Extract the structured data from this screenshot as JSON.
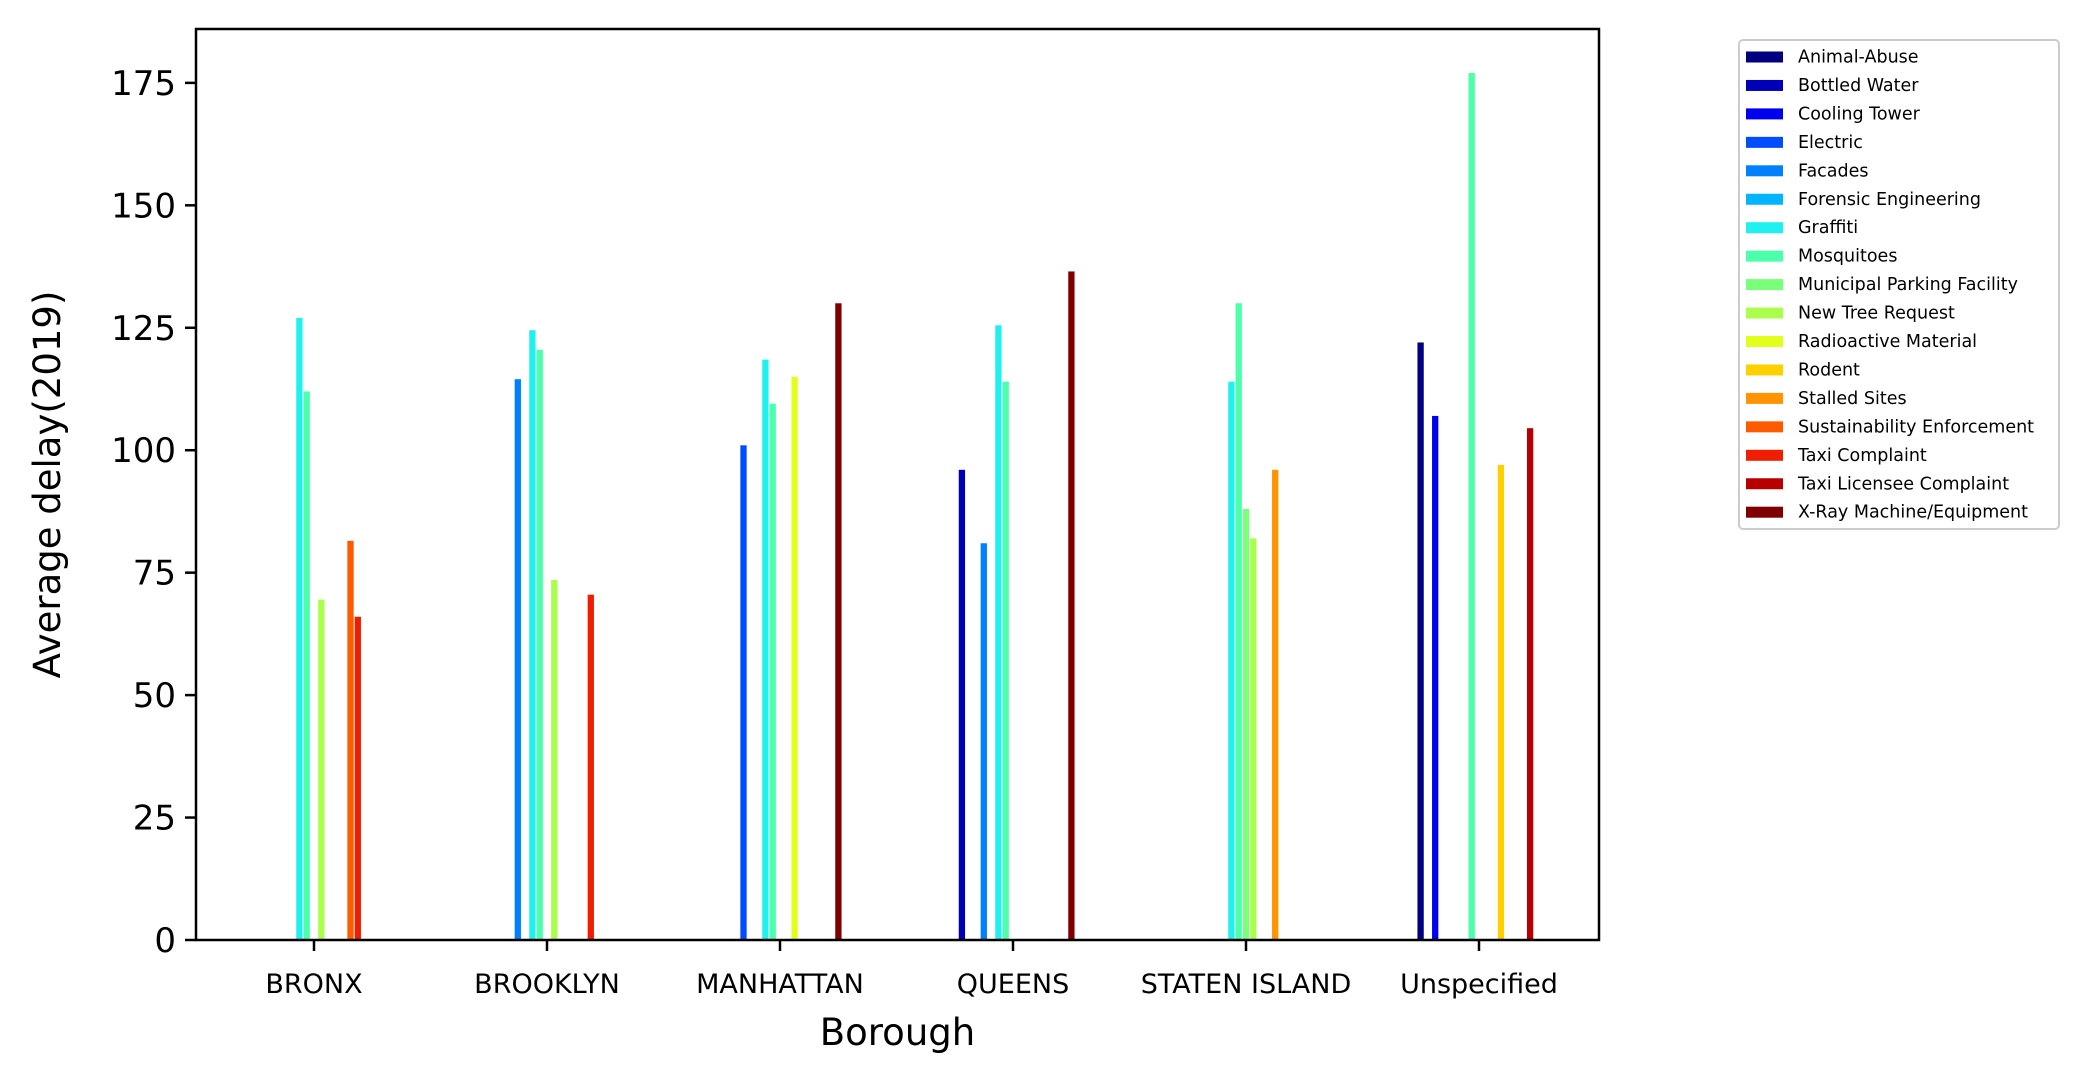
{
  "chart_data": {
    "type": "bar",
    "title": "",
    "xlabel": "Borough",
    "ylabel": "Average delay(2019)",
    "categories": [
      "BRONX",
      "BROOKLYN",
      "MANHATTAN",
      "QUEENS",
      "STATEN ISLAND",
      "Unspecified"
    ],
    "ylim": [
      0,
      186
    ],
    "yticks": [
      0,
      25,
      50,
      75,
      100,
      125,
      150,
      175
    ],
    "ytick_labels": [
      "0",
      "25",
      "50",
      "75",
      "100",
      "125",
      "150",
      "175"
    ],
    "grid": false,
    "legend_position": "right, outside plot (top)",
    "series": [
      {
        "name": "Animal-Abuse",
        "color": "#000080",
        "values": [
          null,
          null,
          null,
          null,
          null,
          122
        ]
      },
      {
        "name": "Bottled Water",
        "color": "#0000b8",
        "values": [
          null,
          null,
          null,
          96,
          null,
          null
        ]
      },
      {
        "name": "Cooling Tower",
        "color": "#0000f1",
        "values": [
          null,
          null,
          null,
          null,
          null,
          107
        ]
      },
      {
        "name": "Electric",
        "color": "#004cff",
        "values": [
          null,
          null,
          101,
          null,
          null,
          null
        ]
      },
      {
        "name": "Facades",
        "color": "#0080ff",
        "values": [
          null,
          114.5,
          null,
          81,
          null,
          null
        ]
      },
      {
        "name": "Forensic Engineering",
        "color": "#00b4ff",
        "values": [
          null,
          null,
          null,
          null,
          null,
          null
        ]
      },
      {
        "name": "Graffiti",
        "color": "#1ff0f0",
        "values": [
          127,
          124.5,
          118.5,
          125.5,
          114,
          null
        ]
      },
      {
        "name": "Mosquitoes",
        "color": "#4cffaa",
        "values": [
          112,
          120.5,
          109.5,
          114,
          130,
          177
        ]
      },
      {
        "name": "Municipal Parking Facility",
        "color": "#7aff7a",
        "values": [
          null,
          null,
          null,
          null,
          88,
          null
        ]
      },
      {
        "name": "New Tree Request",
        "color": "#aaff4c",
        "values": [
          69.5,
          73.5,
          null,
          null,
          82,
          null
        ]
      },
      {
        "name": "Radioactive Material",
        "color": "#e2ff1c",
        "values": [
          null,
          null,
          115,
          null,
          null,
          null
        ]
      },
      {
        "name": "Rodent",
        "color": "#ffd000",
        "values": [
          null,
          null,
          null,
          null,
          null,
          97
        ]
      },
      {
        "name": "Stalled Sites",
        "color": "#ff9400",
        "values": [
          null,
          null,
          null,
          null,
          96,
          null
        ]
      },
      {
        "name": "Sustainability Enforcement",
        "color": "#ff5a00",
        "values": [
          81.5,
          null,
          null,
          null,
          null,
          null
        ]
      },
      {
        "name": "Taxi Complaint",
        "color": "#f11d00",
        "values": [
          66,
          70.5,
          null,
          null,
          null,
          null
        ]
      },
      {
        "name": "Taxi Licensee Complaint",
        "color": "#b80000",
        "values": [
          null,
          null,
          null,
          null,
          null,
          104.5
        ]
      },
      {
        "name": "X-Ray Machine/Equipment",
        "color": "#800000",
        "values": [
          null,
          null,
          130,
          136.5,
          null,
          null
        ]
      }
    ]
  }
}
